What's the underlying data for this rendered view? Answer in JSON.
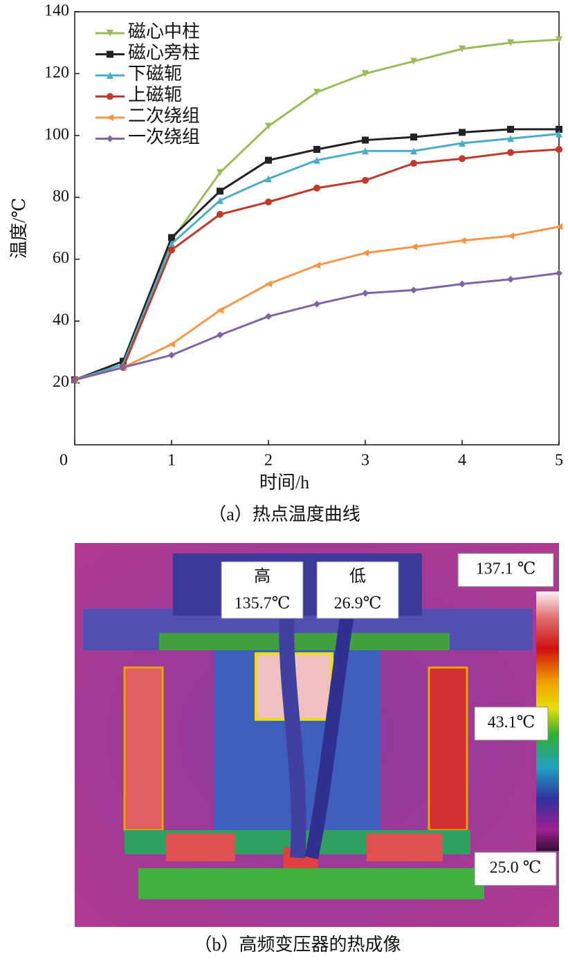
{
  "chart_data": {
    "type": "line",
    "x_label": "时间/h",
    "y_label": "温度/℃",
    "caption": "（a）热点温度曲线",
    "x": [
      0,
      0.5,
      1,
      1.5,
      2,
      2.5,
      3,
      3.5,
      4,
      4.5,
      5
    ],
    "xlim": [
      0,
      5
    ],
    "xticks": [
      0,
      1,
      2,
      3,
      4,
      5
    ],
    "ylim": [
      0,
      140
    ],
    "yticks": [
      20,
      40,
      60,
      80,
      100,
      120,
      140
    ],
    "legend": "upper-left",
    "grid": false,
    "series": [
      {
        "name": "磁心中柱",
        "color": "#9bbb59",
        "marker": "triangle-down",
        "values": [
          21,
          27,
          66,
          88,
          103,
          114,
          120,
          124,
          128,
          130,
          131
        ]
      },
      {
        "name": "磁心旁柱",
        "color": "#222222",
        "marker": "square",
        "values": [
          21,
          27,
          67,
          82,
          92,
          95.5,
          98.5,
          99.5,
          101,
          102,
          102
        ]
      },
      {
        "name": "下磁轭",
        "color": "#4bacc6",
        "marker": "triangle-up",
        "values": [
          21,
          26,
          65,
          79,
          86,
          92,
          95,
          95,
          97.5,
          99,
          100.5
        ]
      },
      {
        "name": "上磁轭",
        "color": "#c0392b",
        "marker": "circle",
        "values": [
          21,
          25,
          63,
          74.5,
          78.5,
          83,
          85.5,
          91,
          92.5,
          94.5,
          95.5
        ]
      },
      {
        "name": "二次绕组",
        "color": "#f79646",
        "marker": "triangle-left",
        "values": [
          21,
          25,
          32.5,
          43.5,
          52,
          58,
          62,
          64,
          66,
          67.5,
          70.5
        ]
      },
      {
        "name": "一次绕组",
        "color": "#8064a2",
        "marker": "diamond",
        "values": [
          21,
          25,
          29,
          35.5,
          41.5,
          45.5,
          49,
          50,
          52,
          53.5,
          55.5
        ]
      }
    ]
  },
  "image": {
    "high_label": "高",
    "high_temp": "135.7℃",
    "low_label": "低",
    "low_temp": "26.9℃",
    "scale_max": "137.1 ℃",
    "scale_mid": "43.1℃",
    "scale_min": "25.0 ℃",
    "caption": "（b）高频变压器的热成像"
  }
}
